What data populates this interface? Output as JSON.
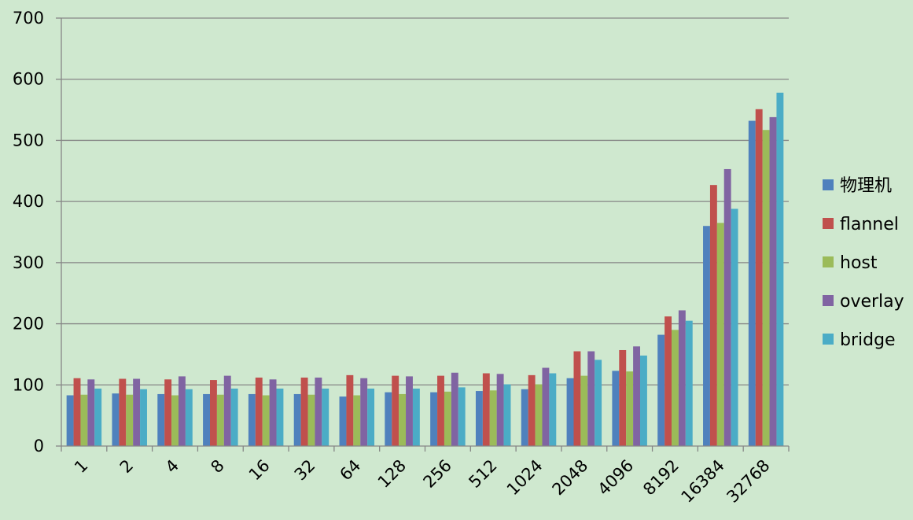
{
  "chart_data": {
    "type": "bar",
    "title": "",
    "xlabel": "",
    "ylabel": "",
    "ylim": [
      0,
      700
    ],
    "yticks": [
      0,
      100,
      200,
      300,
      400,
      500,
      600,
      700
    ],
    "grid": true,
    "legend_position": "right",
    "categories": [
      "1",
      "2",
      "4",
      "8",
      "16",
      "32",
      "64",
      "128",
      "256",
      "512",
      "1024",
      "2048",
      "4096",
      "8192",
      "16384",
      "32768"
    ],
    "series": [
      {
        "name": "物理机",
        "color": "#4f81bd",
        "values": [
          83,
          86,
          85,
          85,
          85,
          85,
          81,
          88,
          88,
          90,
          93,
          111,
          123,
          182,
          360,
          532
        ]
      },
      {
        "name": "flannel",
        "color": "#c0504d",
        "values": [
          111,
          110,
          109,
          108,
          112,
          112,
          116,
          115,
          115,
          119,
          116,
          155,
          157,
          212,
          427,
          551
        ]
      },
      {
        "name": "host",
        "color": "#9bbb59",
        "values": [
          84,
          84,
          83,
          84,
          83,
          84,
          83,
          85,
          89,
          91,
          101,
          115,
          122,
          190,
          365,
          517
        ]
      },
      {
        "name": "overlay",
        "color": "#8064a2",
        "values": [
          109,
          110,
          114,
          115,
          109,
          112,
          111,
          114,
          120,
          118,
          128,
          155,
          163,
          222,
          453,
          538
        ]
      },
      {
        "name": "bridge",
        "color": "#4bacc6",
        "values": [
          94,
          93,
          93,
          94,
          94,
          94,
          94,
          94,
          96,
          101,
          119,
          141,
          148,
          205,
          388,
          578
        ]
      }
    ]
  }
}
